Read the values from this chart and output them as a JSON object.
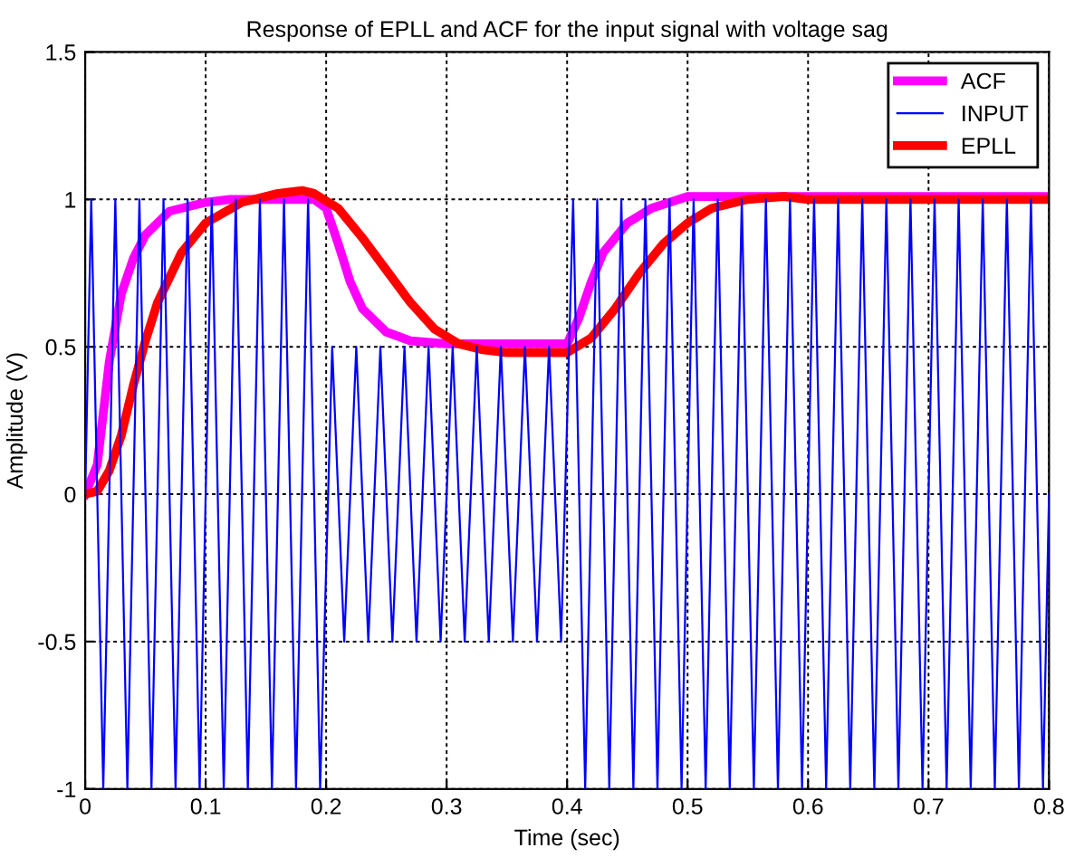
{
  "chart_data": {
    "type": "line",
    "title": "Response of EPLL and ACF for the input signal with voltage sag",
    "xlabel": "Time (sec)",
    "ylabel": "Amplitude (V)",
    "xlim": [
      0,
      0.8
    ],
    "ylim": [
      -1,
      1.5
    ],
    "xticks": [
      0,
      0.1,
      0.2,
      0.3,
      0.4,
      0.5,
      0.6,
      0.7,
      0.8
    ],
    "yticks": [
      -1,
      -0.5,
      0,
      0.5,
      1,
      1.5
    ],
    "grid": true,
    "legend": "top right",
    "line_style": "solid",
    "series": [
      {
        "name": "ACF",
        "color": "#ff00ff",
        "x": [
          0,
          0.01,
          0.02,
          0.03,
          0.04,
          0.05,
          0.07,
          0.1,
          0.12,
          0.19,
          0.2,
          0.21,
          0.22,
          0.23,
          0.25,
          0.27,
          0.3,
          0.4,
          0.41,
          0.42,
          0.43,
          0.45,
          0.47,
          0.5,
          0.8
        ],
        "values": [
          0,
          0.1,
          0.45,
          0.68,
          0.8,
          0.88,
          0.96,
          0.99,
          1.0,
          1.0,
          0.97,
          0.85,
          0.72,
          0.63,
          0.55,
          0.52,
          0.51,
          0.51,
          0.6,
          0.72,
          0.82,
          0.92,
          0.97,
          1.01,
          1.01
        ]
      },
      {
        "name": "INPUT",
        "color": "#0000ff",
        "x": [
          0,
          0.005,
          0.015,
          0.025,
          0.035,
          0.045,
          0.055,
          0.065,
          0.075,
          0.085,
          0.095,
          0.105,
          0.115,
          0.125,
          0.135,
          0.145,
          0.155,
          0.165,
          0.175,
          0.185,
          0.195,
          0.205,
          0.215,
          0.225,
          0.235,
          0.245,
          0.255,
          0.265,
          0.275,
          0.285,
          0.295,
          0.305,
          0.315,
          0.325,
          0.335,
          0.345,
          0.355,
          0.365,
          0.375,
          0.385,
          0.395,
          0.405,
          0.415,
          0.425,
          0.435,
          0.445,
          0.455,
          0.465,
          0.475,
          0.485,
          0.495,
          0.505,
          0.515,
          0.525,
          0.535,
          0.545,
          0.555,
          0.565,
          0.575,
          0.585,
          0.595,
          0.605,
          0.615,
          0.625,
          0.635,
          0.645,
          0.655,
          0.665,
          0.675,
          0.685,
          0.695,
          0.705,
          0.715,
          0.725,
          0.735,
          0.745,
          0.755,
          0.765,
          0.775,
          0.785,
          0.795,
          0.8
        ],
        "values": [
          0,
          1,
          -1,
          1,
          -1,
          1,
          -1,
          1,
          -1,
          1,
          -1,
          1,
          -1,
          1,
          -1,
          1,
          -1,
          1,
          -1,
          1,
          -1,
          0.5,
          -0.5,
          0.5,
          -0.5,
          0.5,
          -0.5,
          0.5,
          -0.5,
          0.5,
          -0.5,
          0.5,
          -0.5,
          0.5,
          -0.5,
          0.5,
          -0.5,
          0.5,
          -0.5,
          0.5,
          -0.5,
          1,
          -1,
          1,
          -1,
          1,
          -1,
          1,
          -1,
          1,
          -1,
          1,
          -1,
          1,
          -1,
          1,
          -1,
          1,
          -1,
          1,
          -1,
          1,
          -1,
          1,
          -1,
          1,
          -1,
          1,
          -1,
          1,
          -1,
          1,
          -1,
          1,
          -1,
          1,
          -1,
          1,
          -1,
          1,
          -1,
          0
        ]
      },
      {
        "name": "EPLL",
        "color": "#ff0000",
        "x": [
          0,
          0.01,
          0.02,
          0.03,
          0.04,
          0.05,
          0.06,
          0.08,
          0.1,
          0.13,
          0.16,
          0.18,
          0.19,
          0.21,
          0.23,
          0.25,
          0.27,
          0.29,
          0.31,
          0.33,
          0.35,
          0.4,
          0.42,
          0.44,
          0.46,
          0.48,
          0.5,
          0.52,
          0.55,
          0.58,
          0.6,
          0.8
        ],
        "values": [
          0,
          0.01,
          0.08,
          0.2,
          0.37,
          0.52,
          0.65,
          0.82,
          0.92,
          0.99,
          1.02,
          1.03,
          1.02,
          0.97,
          0.87,
          0.76,
          0.65,
          0.56,
          0.51,
          0.49,
          0.48,
          0.48,
          0.53,
          0.63,
          0.75,
          0.85,
          0.92,
          0.97,
          1.0,
          1.01,
          1.0,
          1.0
        ]
      }
    ]
  }
}
